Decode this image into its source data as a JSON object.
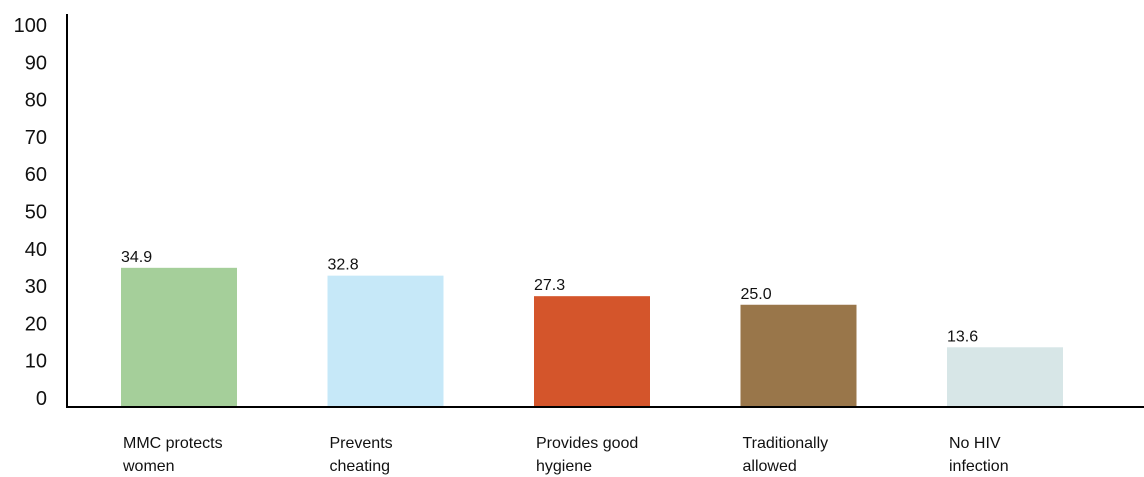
{
  "chart_data": {
    "type": "bar",
    "title": "",
    "xlabel": "",
    "ylabel": "",
    "ylim": [
      0,
      100
    ],
    "yticks": [
      0,
      10,
      20,
      30,
      40,
      50,
      60,
      70,
      80,
      90,
      100
    ],
    "grid": false,
    "legend": "none",
    "categories": [
      [
        "MMC protects",
        "women"
      ],
      [
        "Prevents",
        "cheating"
      ],
      [
        "Provides good",
        "hygiene"
      ],
      [
        "Traditionally",
        "allowed"
      ],
      [
        "No HIV",
        "infection"
      ]
    ],
    "values": [
      34.9,
      32.8,
      27.3,
      25.0,
      13.6
    ],
    "value_labels": [
      "34.9",
      "32.8",
      "27.3",
      "25.0",
      "13.6"
    ],
    "colors": [
      "#a5cf9a",
      "#c6e8f8",
      "#d4552b",
      "#99764a",
      "#d7e6e7"
    ]
  }
}
